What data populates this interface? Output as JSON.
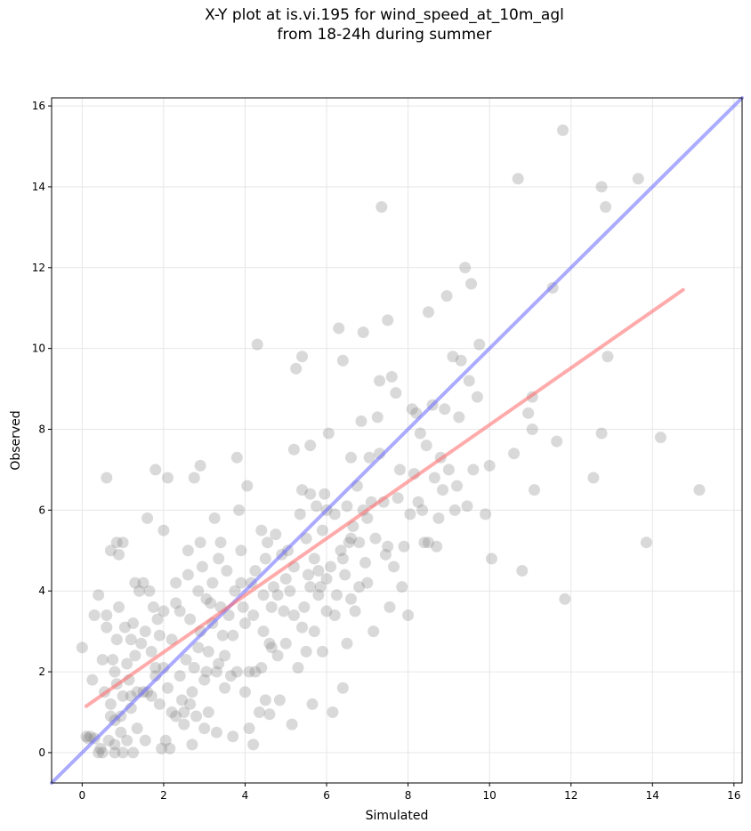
{
  "chart_data": {
    "type": "scatter",
    "title_lines": [
      "X-Y plot at is.vi.195 for wind_speed_at_10m_agl",
      "from 18-24h during summer"
    ],
    "xlabel": "Simulated",
    "ylabel": "Observed",
    "xlim": [
      -0.75,
      16.2
    ],
    "ylim": [
      -0.75,
      16.2
    ],
    "xticks": [
      0,
      2,
      4,
      6,
      8,
      10,
      12,
      14,
      16
    ],
    "yticks": [
      0,
      2,
      4,
      6,
      8,
      10,
      12,
      14,
      16
    ],
    "grid": true,
    "point_color": "#808080",
    "point_alpha": 0.3,
    "reference_line": {
      "name": "1:1",
      "color": "#6666ff",
      "from": [
        -0.75,
        -0.75
      ],
      "to": [
        16.2,
        16.2
      ]
    },
    "fit_line": {
      "color": "#ff6666",
      "from": [
        0.1,
        1.15
      ],
      "to": [
        14.75,
        11.45
      ]
    },
    "points": [
      [
        0.0,
        2.6
      ],
      [
        0.1,
        0.4
      ],
      [
        0.15,
        0.35
      ],
      [
        0.25,
        1.8
      ],
      [
        0.3,
        0.35
      ],
      [
        0.3,
        3.4
      ],
      [
        0.4,
        3.9
      ],
      [
        0.4,
        0.0
      ],
      [
        0.5,
        0.0
      ],
      [
        0.5,
        2.3
      ],
      [
        0.55,
        1.5
      ],
      [
        0.6,
        6.8
      ],
      [
        0.6,
        3.4
      ],
      [
        0.6,
        3.1
      ],
      [
        0.65,
        0.3
      ],
      [
        0.7,
        5.0
      ],
      [
        0.7,
        1.2
      ],
      [
        0.75,
        2.3
      ],
      [
        0.8,
        2.0
      ],
      [
        0.8,
        0.8
      ],
      [
        0.8,
        0.2
      ],
      [
        0.8,
        0.0
      ],
      [
        0.85,
        5.2
      ],
      [
        0.85,
        2.8
      ],
      [
        0.85,
        1.7
      ],
      [
        0.9,
        3.6
      ],
      [
        0.9,
        4.9
      ],
      [
        0.95,
        0.5
      ],
      [
        0.95,
        0.9
      ],
      [
        1.0,
        5.2
      ],
      [
        1.0,
        1.4
      ],
      [
        1.05,
        3.1
      ],
      [
        1.1,
        2.2
      ],
      [
        1.1,
        0.3
      ],
      [
        1.15,
        1.8
      ],
      [
        1.2,
        1.4
      ],
      [
        1.2,
        2.8
      ],
      [
        1.2,
        1.1
      ],
      [
        1.25,
        3.2
      ],
      [
        1.3,
        4.2
      ],
      [
        1.3,
        2.4
      ],
      [
        1.35,
        1.5
      ],
      [
        1.35,
        0.6
      ],
      [
        1.4,
        4.0
      ],
      [
        1.45,
        2.7
      ],
      [
        1.5,
        4.2
      ],
      [
        1.5,
        1.5
      ],
      [
        1.55,
        3.0
      ],
      [
        1.6,
        5.8
      ],
      [
        1.6,
        1.5
      ],
      [
        1.65,
        4.0
      ],
      [
        1.7,
        2.5
      ],
      [
        1.7,
        1.4
      ],
      [
        1.75,
        3.6
      ],
      [
        1.8,
        7.0
      ],
      [
        1.8,
        2.1
      ],
      [
        1.85,
        3.3
      ],
      [
        1.9,
        2.9
      ],
      [
        1.9,
        1.2
      ],
      [
        1.95,
        0.1
      ],
      [
        2.0,
        5.5
      ],
      [
        2.0,
        3.5
      ],
      [
        2.05,
        0.3
      ],
      [
        2.1,
        6.8
      ],
      [
        2.1,
        1.6
      ],
      [
        2.15,
        0.1
      ],
      [
        2.2,
        2.8
      ],
      [
        2.3,
        4.2
      ],
      [
        2.3,
        3.7
      ],
      [
        2.3,
        0.9
      ],
      [
        2.4,
        3.5
      ],
      [
        2.4,
        1.9
      ],
      [
        2.5,
        1.0
      ],
      [
        2.5,
        0.7
      ],
      [
        2.55,
        2.3
      ],
      [
        2.6,
        4.4
      ],
      [
        2.6,
        5.0
      ],
      [
        2.65,
        3.3
      ],
      [
        2.7,
        1.5
      ],
      [
        2.7,
        0.2
      ],
      [
        2.75,
        6.8
      ],
      [
        2.75,
        2.1
      ],
      [
        2.8,
        0.9
      ],
      [
        2.85,
        4.0
      ],
      [
        2.9,
        5.2
      ],
      [
        2.9,
        3.0
      ],
      [
        2.9,
        7.1
      ],
      [
        2.95,
        4.6
      ],
      [
        3.0,
        1.8
      ],
      [
        3.0,
        0.6
      ],
      [
        3.05,
        3.8
      ],
      [
        3.1,
        2.5
      ],
      [
        3.1,
        1.0
      ],
      [
        3.2,
        4.2
      ],
      [
        3.2,
        3.2
      ],
      [
        3.25,
        5.8
      ],
      [
        3.3,
        2.0
      ],
      [
        3.3,
        0.5
      ],
      [
        3.35,
        4.8
      ],
      [
        3.4,
        5.2
      ],
      [
        3.4,
        3.6
      ],
      [
        3.5,
        2.4
      ],
      [
        3.5,
        1.6
      ],
      [
        3.55,
        4.5
      ],
      [
        3.6,
        3.4
      ],
      [
        3.7,
        2.9
      ],
      [
        3.7,
        0.4
      ],
      [
        3.75,
        4.0
      ],
      [
        3.8,
        7.3
      ],
      [
        3.8,
        2.0
      ],
      [
        3.85,
        6.0
      ],
      [
        3.9,
        5.0
      ],
      [
        3.95,
        3.6
      ],
      [
        4.0,
        1.5
      ],
      [
        4.05,
        6.6
      ],
      [
        4.1,
        2.0
      ],
      [
        4.1,
        0.6
      ],
      [
        4.15,
        4.2
      ],
      [
        4.2,
        3.4
      ],
      [
        4.2,
        0.2
      ],
      [
        4.25,
        4.5
      ],
      [
        4.3,
        10.1
      ],
      [
        4.35,
        1.0
      ],
      [
        4.4,
        5.5
      ],
      [
        4.4,
        2.1
      ],
      [
        4.45,
        3.0
      ],
      [
        4.5,
        4.8
      ],
      [
        4.5,
        1.3
      ],
      [
        4.55,
        5.2
      ],
      [
        4.6,
        2.7
      ],
      [
        4.6,
        0.95
      ],
      [
        4.65,
        3.6
      ],
      [
        4.7,
        4.1
      ],
      [
        4.75,
        5.4
      ],
      [
        4.8,
        2.4
      ],
      [
        4.85,
        1.3
      ],
      [
        4.9,
        4.9
      ],
      [
        4.95,
        3.5
      ],
      [
        5.0,
        2.7
      ],
      [
        5.05,
        5.0
      ],
      [
        5.1,
        4.0
      ],
      [
        5.15,
        0.7
      ],
      [
        5.2,
        7.5
      ],
      [
        5.2,
        3.4
      ],
      [
        5.25,
        9.5
      ],
      [
        5.3,
        2.1
      ],
      [
        5.35,
        5.9
      ],
      [
        5.4,
        9.8
      ],
      [
        5.4,
        6.5
      ],
      [
        5.45,
        3.6
      ],
      [
        5.5,
        5.3
      ],
      [
        5.5,
        2.5
      ],
      [
        5.55,
        4.4
      ],
      [
        5.6,
        6.4
      ],
      [
        5.6,
        7.6
      ],
      [
        5.65,
        1.2
      ],
      [
        5.7,
        4.8
      ],
      [
        5.7,
        3.0
      ],
      [
        5.75,
        6.1
      ],
      [
        5.8,
        3.9
      ],
      [
        5.85,
        4.1
      ],
      [
        5.9,
        5.5
      ],
      [
        5.9,
        2.5
      ],
      [
        5.95,
        6.4
      ],
      [
        6.0,
        6.0
      ],
      [
        6.0,
        3.5
      ],
      [
        6.05,
        7.9
      ],
      [
        6.1,
        4.6
      ],
      [
        6.15,
        1.0
      ],
      [
        6.2,
        5.9
      ],
      [
        6.25,
        3.9
      ],
      [
        6.3,
        10.5
      ],
      [
        6.35,
        5.0
      ],
      [
        6.4,
        9.7
      ],
      [
        6.4,
        1.6
      ],
      [
        6.45,
        4.4
      ],
      [
        6.5,
        6.1
      ],
      [
        6.5,
        2.7
      ],
      [
        6.55,
        5.2
      ],
      [
        6.6,
        7.3
      ],
      [
        6.6,
        3.8
      ],
      [
        6.65,
        5.6
      ],
      [
        6.7,
        3.5
      ],
      [
        6.75,
        6.6
      ],
      [
        6.8,
        4.1
      ],
      [
        6.85,
        8.2
      ],
      [
        6.9,
        10.4
      ],
      [
        6.9,
        6.0
      ],
      [
        6.95,
        4.7
      ],
      [
        7.0,
        5.8
      ],
      [
        7.05,
        7.3
      ],
      [
        7.1,
        6.2
      ],
      [
        7.15,
        3.0
      ],
      [
        7.2,
        5.3
      ],
      [
        7.25,
        8.3
      ],
      [
        7.3,
        9.2
      ],
      [
        7.3,
        7.4
      ],
      [
        7.35,
        13.5
      ],
      [
        7.4,
        6.2
      ],
      [
        7.45,
        4.9
      ],
      [
        7.5,
        10.7
      ],
      [
        7.5,
        5.1
      ],
      [
        7.55,
        3.6
      ],
      [
        7.6,
        9.3
      ],
      [
        7.65,
        4.6
      ],
      [
        7.7,
        8.9
      ],
      [
        7.75,
        6.3
      ],
      [
        7.8,
        7.0
      ],
      [
        7.85,
        4.1
      ],
      [
        7.9,
        5.1
      ],
      [
        8.0,
        3.4
      ],
      [
        8.05,
        5.9
      ],
      [
        8.1,
        8.5
      ],
      [
        8.15,
        6.9
      ],
      [
        8.2,
        8.4
      ],
      [
        8.25,
        6.2
      ],
      [
        8.3,
        7.9
      ],
      [
        8.35,
        6.0
      ],
      [
        8.4,
        5.2
      ],
      [
        8.45,
        7.6
      ],
      [
        8.5,
        10.9
      ],
      [
        8.5,
        5.2
      ],
      [
        8.6,
        8.6
      ],
      [
        8.65,
        6.8
      ],
      [
        8.7,
        5.1
      ],
      [
        8.75,
        5.8
      ],
      [
        8.8,
        7.3
      ],
      [
        8.85,
        6.5
      ],
      [
        8.9,
        8.5
      ],
      [
        8.95,
        11.3
      ],
      [
        9.0,
        7.0
      ],
      [
        9.1,
        9.8
      ],
      [
        9.15,
        6.0
      ],
      [
        9.2,
        6.6
      ],
      [
        9.25,
        8.3
      ],
      [
        9.3,
        9.7
      ],
      [
        9.4,
        12.0
      ],
      [
        9.45,
        6.1
      ],
      [
        9.5,
        9.2
      ],
      [
        9.55,
        11.6
      ],
      [
        9.6,
        7.0
      ],
      [
        9.75,
        10.1
      ],
      [
        9.7,
        8.8
      ],
      [
        9.9,
        5.9
      ],
      [
        10.0,
        7.1
      ],
      [
        10.05,
        4.8
      ],
      [
        10.6,
        7.4
      ],
      [
        10.7,
        14.2
      ],
      [
        10.8,
        4.5
      ],
      [
        10.95,
        8.4
      ],
      [
        11.05,
        8.0
      ],
      [
        11.05,
        8.8
      ],
      [
        11.1,
        6.5
      ],
      [
        11.55,
        11.5
      ],
      [
        11.65,
        7.7
      ],
      [
        11.8,
        15.4
      ],
      [
        11.85,
        3.8
      ],
      [
        12.55,
        6.8
      ],
      [
        12.75,
        7.9
      ],
      [
        12.75,
        14.0
      ],
      [
        12.85,
        13.5
      ],
      [
        12.9,
        9.8
      ],
      [
        13.65,
        14.2
      ],
      [
        13.85,
        5.2
      ],
      [
        14.2,
        7.8
      ],
      [
        15.15,
        6.5
      ],
      [
        0.2,
        0.4
      ],
      [
        0.45,
        0.1
      ],
      [
        0.7,
        0.9
      ],
      [
        1.0,
        0.0
      ],
      [
        1.25,
        0.0
      ],
      [
        1.55,
        0.3
      ],
      [
        1.8,
        1.9
      ],
      [
        2.0,
        2.1
      ],
      [
        2.2,
        1.0
      ],
      [
        2.45,
        1.3
      ],
      [
        2.65,
        1.2
      ],
      [
        2.85,
        2.6
      ],
      [
        3.05,
        2.0
      ],
      [
        3.15,
        3.7
      ],
      [
        3.35,
        2.2
      ],
      [
        3.45,
        2.9
      ],
      [
        3.65,
        1.9
      ],
      [
        3.9,
        4.2
      ],
      [
        4.0,
        3.2
      ],
      [
        4.25,
        2.0
      ],
      [
        4.45,
        3.9
      ],
      [
        4.65,
        2.6
      ],
      [
        4.8,
        3.9
      ],
      [
        5.0,
        4.3
      ],
      [
        5.2,
        4.6
      ],
      [
        5.4,
        3.1
      ],
      [
        5.6,
        4.1
      ],
      [
        5.8,
        4.5
      ],
      [
        6.0,
        4.3
      ],
      [
        6.2,
        3.4
      ],
      [
        6.4,
        4.8
      ],
      [
        6.6,
        5.3
      ],
      [
        6.8,
        5.2
      ],
      [
        7.0,
        4.2
      ]
    ]
  }
}
